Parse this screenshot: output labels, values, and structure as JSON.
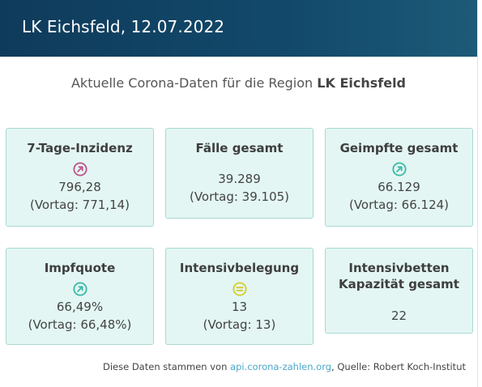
{
  "header": {
    "title": "LK Eichsfeld, 12.07.2022"
  },
  "subtitle": {
    "prefix": "Aktuelle Corona-Daten für die Region",
    "region": "LK Eichsfeld"
  },
  "cards": [
    {
      "label": "7-Tage-Inzidenz",
      "icon": "arrow-up-right-icon",
      "icon_color": "#c0508a",
      "value": "796,28",
      "prev": "(Vortag: 771,14)"
    },
    {
      "label": "Fälle gesamt",
      "value": "39.289",
      "prev": "(Vortag: 39.105)"
    },
    {
      "label": "Geimpfte gesamt",
      "icon": "arrow-up-right-icon",
      "icon_color": "#3bb8a6",
      "value": "66.129",
      "prev": "(Vortag: 66.124)"
    },
    {
      "label": "Impfquote",
      "icon": "arrow-up-right-icon",
      "icon_color": "#3bb8a6",
      "value": "66,49%",
      "prev": "(Vortag: 66,48%)"
    },
    {
      "label": "Intensivbelegung",
      "icon": "equals-icon",
      "icon_color": "#d6cc2e",
      "value": "13",
      "prev": "(Vortag: 13)"
    },
    {
      "label_line1": "Intensivbetten",
      "label_line2": "Kapazität gesamt",
      "value": "22"
    }
  ],
  "footer": {
    "prefix": "Diese Daten stammen von",
    "link": "api.corona-zahlen.org",
    "suffix": ", Quelle: Robert Koch-Institut"
  }
}
